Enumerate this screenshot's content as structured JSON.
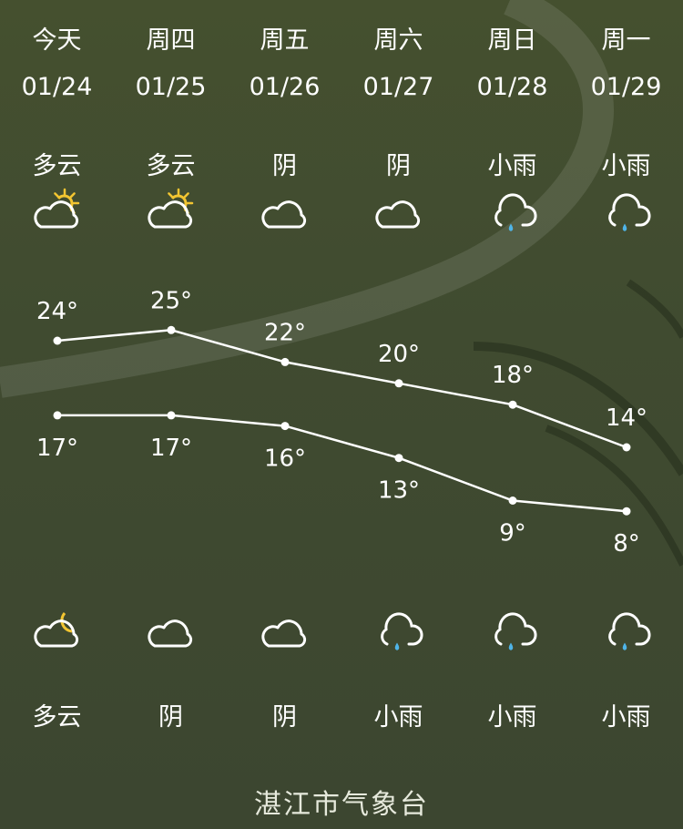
{
  "colors": {
    "background": "#404b30",
    "sun": "#f2c531",
    "moon": "#f2c531",
    "rain": "#4fb4e8",
    "line": "#ffffff"
  },
  "days": [
    {
      "day": "今天",
      "date": "01/24",
      "day_weather": "多云",
      "day_icon": "partly-cloudy-day-icon",
      "high": 24,
      "low": 17,
      "night_icon": "partly-cloudy-night-icon",
      "night_weather": "多云"
    },
    {
      "day": "周四",
      "date": "01/25",
      "day_weather": "多云",
      "day_icon": "partly-cloudy-day-icon",
      "high": 25,
      "low": 17,
      "night_icon": "cloud-icon",
      "night_weather": "阴"
    },
    {
      "day": "周五",
      "date": "01/26",
      "day_weather": "阴",
      "day_icon": "cloud-icon",
      "high": 22,
      "low": 16,
      "night_icon": "cloud-icon",
      "night_weather": "阴"
    },
    {
      "day": "周六",
      "date": "01/27",
      "day_weather": "阴",
      "day_icon": "cloud-icon",
      "high": 20,
      "low": 13,
      "night_icon": "light-rain-icon",
      "night_weather": "小雨"
    },
    {
      "day": "周日",
      "date": "01/28",
      "day_weather": "小雨",
      "day_icon": "light-rain-icon",
      "high": 18,
      "low": 9,
      "night_icon": "light-rain-icon",
      "night_weather": "小雨"
    },
    {
      "day": "周一",
      "date": "01/29",
      "day_weather": "小雨",
      "day_icon": "light-rain-icon",
      "high": 14,
      "low": 8,
      "night_icon": "light-rain-icon",
      "night_weather": "小雨"
    }
  ],
  "chart_data": {
    "type": "line",
    "categories": [
      "01/24",
      "01/25",
      "01/26",
      "01/27",
      "01/28",
      "01/29"
    ],
    "series": [
      {
        "values": [
          24,
          25,
          22,
          20,
          18,
          14
        ]
      },
      {
        "values": [
          17,
          17,
          16,
          13,
          9,
          8
        ]
      }
    ],
    "unit": "°"
  },
  "footer": "湛江市气象台"
}
